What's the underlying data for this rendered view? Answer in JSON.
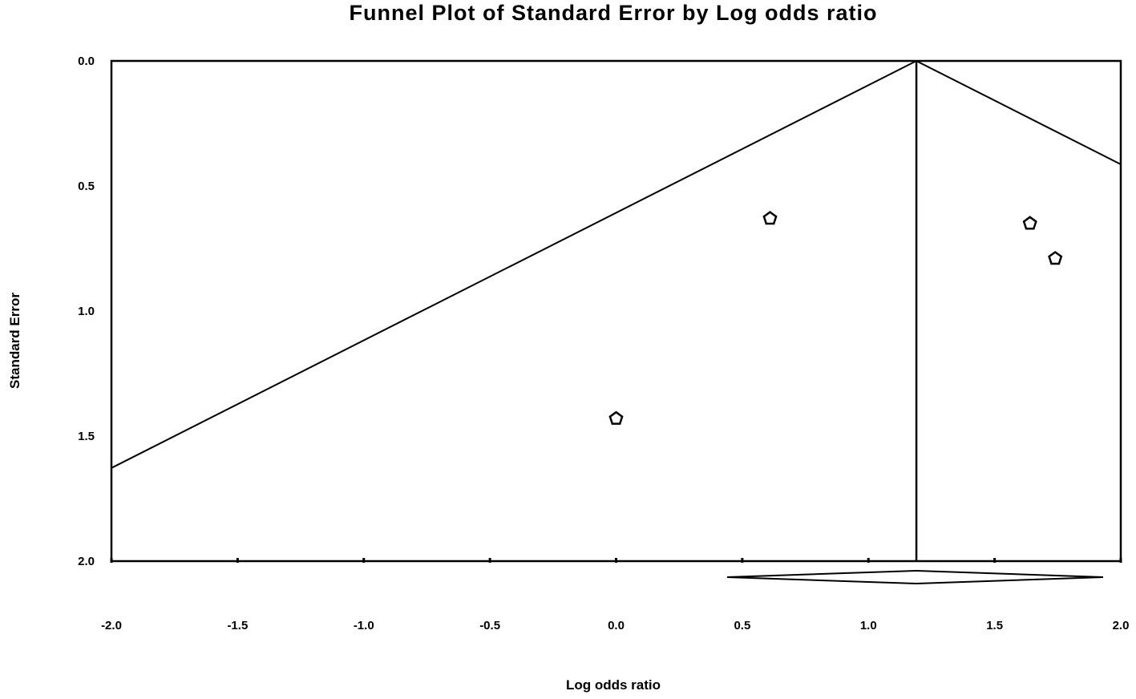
{
  "chart_data": {
    "type": "scatter",
    "title": "Funnel Plot of Standard Error by Log odds ratio",
    "xlabel": "Log odds ratio",
    "ylabel": "Standard Error",
    "xlim": [
      -2.0,
      2.0
    ],
    "ylim": [
      0.0,
      2.0
    ],
    "y_inverted": true,
    "x_ticks": [
      "-2.0",
      "-1.5",
      "-1.0",
      "-0.5",
      "0.0",
      "0.5",
      "1.0",
      "1.5",
      "2.0"
    ],
    "y_ticks": [
      "0.0",
      "0.5",
      "1.0",
      "1.5",
      "2.0"
    ],
    "grid": false,
    "points": [
      {
        "x": 0.0,
        "y": 1.43
      },
      {
        "x": 0.61,
        "y": 0.63
      },
      {
        "x": 1.64,
        "y": 0.65
      },
      {
        "x": 1.74,
        "y": 0.79
      }
    ],
    "pooled_estimate": 1.19,
    "funnel_limit_slope": 1.96,
    "summary_diamond": {
      "center": 1.19,
      "lower": 0.44,
      "upper": 1.93
    }
  }
}
